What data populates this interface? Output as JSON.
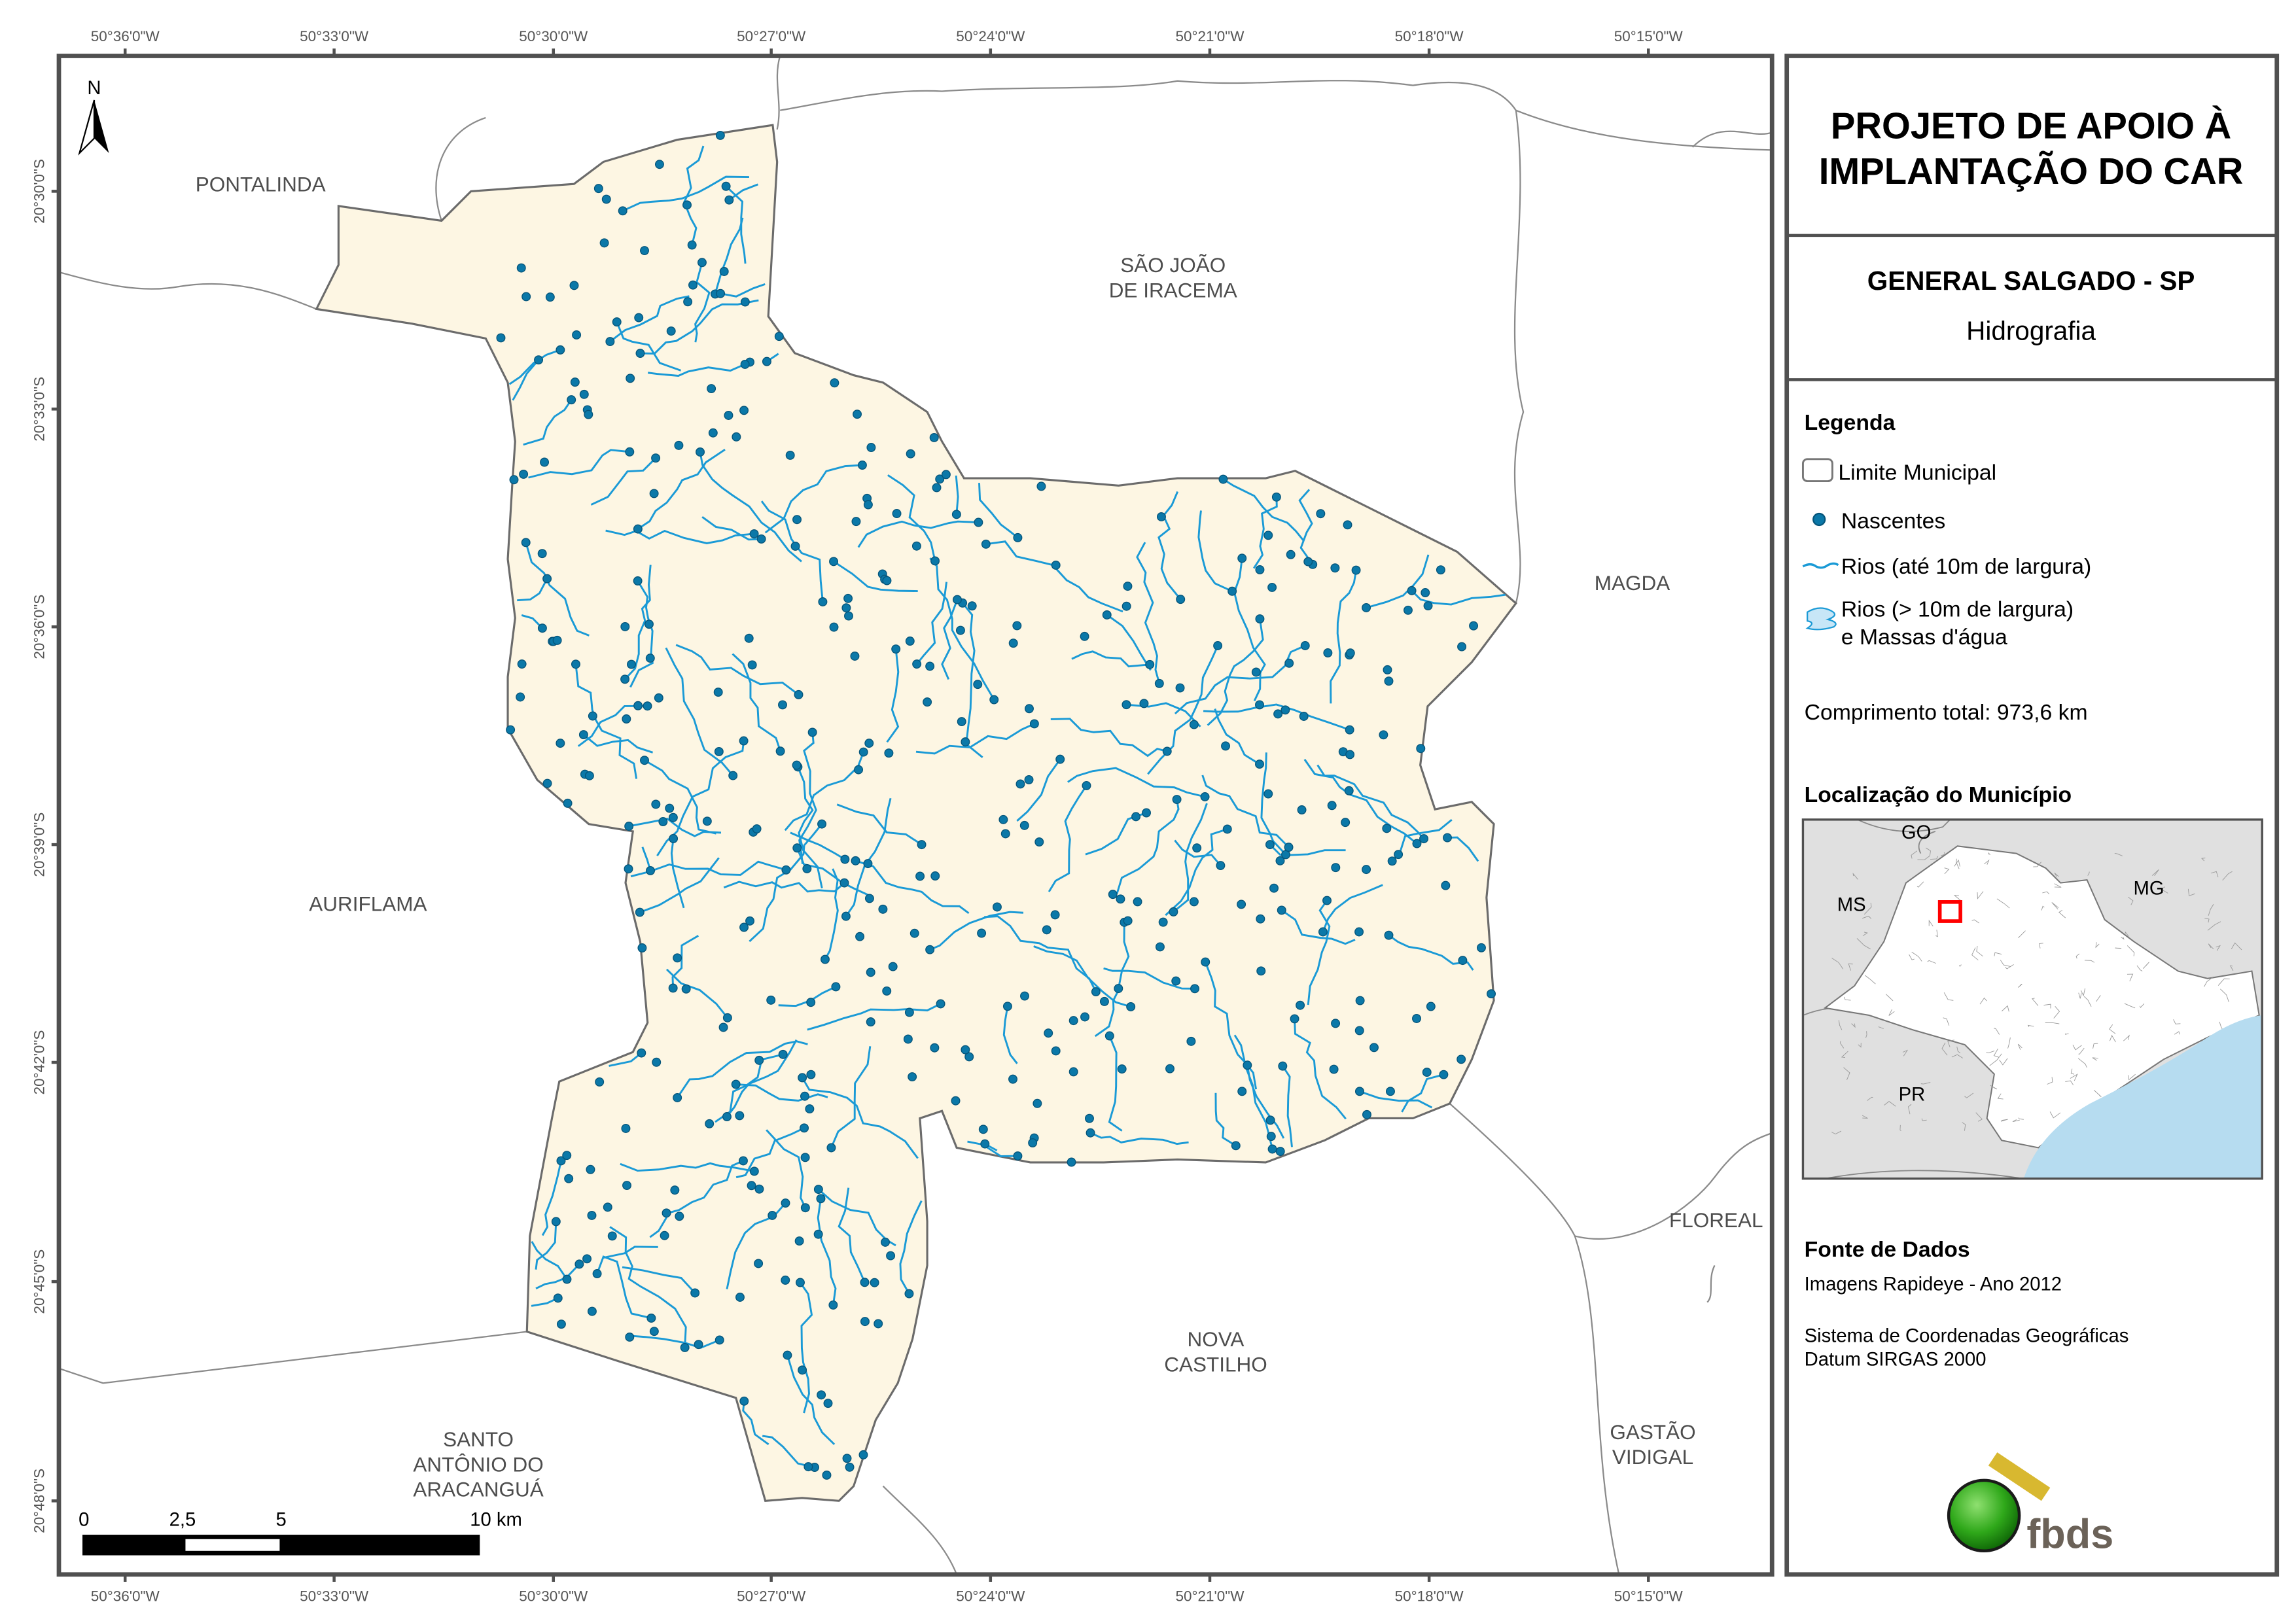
{
  "header": {
    "title_line1": "PROJETO DE APOIO À",
    "title_line2": "IMPLANTAÇÃO DO CAR",
    "municipality": "GENERAL SALGADO - SP",
    "theme": "Hidrografia"
  },
  "legend": {
    "title": "Legenda",
    "items": [
      {
        "label": "Limite Municipal",
        "icon": "municipal-boundary-icon"
      },
      {
        "label": "Nascentes",
        "icon": "spring-dot-icon"
      },
      {
        "label": "Rios (até 10m de largura)",
        "icon": "river-line-icon"
      },
      {
        "label_line1": "Rios (> 10m de largura)",
        "label_line2": "e Massas d'água",
        "icon": "water-body-icon"
      }
    ],
    "total_length": "Comprimento total: 973,6 km"
  },
  "location": {
    "title": "Localização do Município",
    "states": [
      "GO",
      "MS",
      "MG",
      "PR"
    ]
  },
  "sources": {
    "title": "Fonte de Dados",
    "imagery": "Imagens Rapideye - Ano 2012",
    "crs_line1": "Sistema de Coordenadas Geográficas",
    "crs_line2": "Datum SIRGAS 2000",
    "logo_text": "fbds"
  },
  "map": {
    "north_label": "N",
    "longitude_ticks": [
      "50°36'0\"W",
      "50°33'0\"W",
      "50°30'0\"W",
      "50°27'0\"W",
      "50°24'0\"W",
      "50°21'0\"W",
      "50°18'0\"W",
      "50°15'0\"W"
    ],
    "latitude_ticks": [
      "20°30'0\"S",
      "20°33'0\"S",
      "20°36'0\"S",
      "20°39'0\"S",
      "20°42'0\"S",
      "20°45'0\"S",
      "20°48'0\"S"
    ],
    "places": [
      {
        "lines": [
          "PONTALINDA"
        ]
      },
      {
        "lines": [
          "SÃO JOÃO",
          "DE IRACEMA"
        ]
      },
      {
        "lines": [
          "MAGDA"
        ]
      },
      {
        "lines": [
          "AURIFLAMA"
        ]
      },
      {
        "lines": [
          "FLOREAL"
        ]
      },
      {
        "lines": [
          "NOVA",
          "CASTILHO"
        ]
      },
      {
        "lines": [
          "SANTO",
          "ANTÔNIO DO",
          "ARACANGUÁ"
        ]
      },
      {
        "lines": [
          "GASTÃO",
          "VIDIGAL"
        ]
      }
    ],
    "scale_bar": {
      "labels": [
        "0",
        "2,5",
        "5",
        "10 km"
      ]
    },
    "colors": {
      "municipality_fill": "#fdf6e3",
      "river": "#1a9ad6",
      "spring": "#0b78a8",
      "ocean": "#b6dcf0",
      "inset_bg": "#e0e0e0",
      "highlight": "#ff0000"
    }
  }
}
